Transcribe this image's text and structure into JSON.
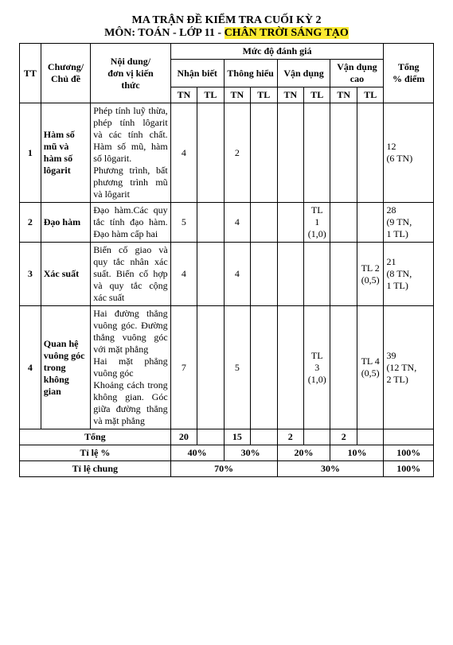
{
  "titles": {
    "line1": "MA TRẬN ĐỀ KIỂM TRA CUỐI KỲ 2",
    "line2_pre": "MÔN: TOÁN - LỚP 11 - ",
    "line2_hl": "CHÂN TRỜI SÁNG TẠO"
  },
  "head": {
    "tt": "TT",
    "chuong": "Chương/\nChủ đề",
    "noidung": "Nội dung/\nđơn vị kiến\nthức",
    "mucdo": "Mức độ đánh giá",
    "tong": "Tổng\n% điểm",
    "levels": [
      "Nhận biết",
      "Thông hiểu",
      "Vận dụng",
      "Vận dụng cao"
    ],
    "tn": "TN",
    "tl": "TL"
  },
  "rows": [
    {
      "tt": "1",
      "chu": "Hàm số mũ và hàm số lôgarit",
      "nd": "Phép tính luỹ thừa, phép tính lôgarit và các tính chất. Hàm số mũ, hàm số lôgarit.\nPhương trình, bất phương trình mũ và lôgarit",
      "nb_tn": "4",
      "nb_tl": "",
      "th_tn": "2",
      "th_tl": "",
      "vd_tn": "",
      "vd_tl": "",
      "vdc_tn": "",
      "vdc_tl": "",
      "tong": "12\n(6 TN)"
    },
    {
      "tt": "2",
      "chu": "Đạo hàm",
      "nd": "Đạo hàm.Các quy tắc tính đạo hàm. Đạo hàm cấp hai",
      "nb_tn": "5",
      "nb_tl": "",
      "th_tn": "4",
      "th_tl": "",
      "vd_tn": "",
      "vd_tl": "TL\n1\n(1,0)",
      "vdc_tn": "",
      "vdc_tl": "",
      "tong": "28\n(9 TN,\n1 TL)"
    },
    {
      "tt": "3",
      "chu": "Xác suất",
      "nd": "Biến cố giao và quy tắc nhân xác suất. Biến cố hợp và quy tắc cộng xác suất",
      "nb_tn": "4",
      "nb_tl": "",
      "th_tn": "4",
      "th_tl": "",
      "vd_tn": "",
      "vd_tl": "",
      "vdc_tn": "",
      "vdc_tl": "TL 2\n(0,5)",
      "tong": "21\n(8 TN,\n1 TL)"
    },
    {
      "tt": "4",
      "chu": "Quan hệ vuông góc trong không gian",
      "nd": "Hai đường thẳng vuông góc. Đường thẳng vuông góc với mặt phẳng\nHai mặt phẳng vuông góc\nKhoảng cách trong không gian. Góc giữa đường thẳng và mặt phẳng",
      "nb_tn": "7",
      "nb_tl": "",
      "th_tn": "5",
      "th_tl": "",
      "vd_tn": "",
      "vd_tl": "TL\n3\n(1,0)",
      "vdc_tn": "",
      "vdc_tl": "TL 4\n(0,5)",
      "tong": "39\n(12 TN,\n2 TL)"
    }
  ],
  "totals": {
    "tong_label": "Tổng",
    "tile_label": "Tỉ lệ %",
    "tilechung_label": "Tỉ lệ chung",
    "nb_tn": "20",
    "nb_tl": "",
    "th_tn": "15",
    "th_tl": "",
    "vd_tn": "2",
    "vd_tl": "",
    "vdc_tn": "2",
    "vdc_tl": "",
    "tong_blank": "",
    "pct_nb": "40%",
    "pct_th": "30%",
    "pct_vd": "20%",
    "pct_vdc": "10%",
    "pct_tong": "100%",
    "chung_left": "70%",
    "chung_right": "30%",
    "chung_tong": "100%"
  }
}
